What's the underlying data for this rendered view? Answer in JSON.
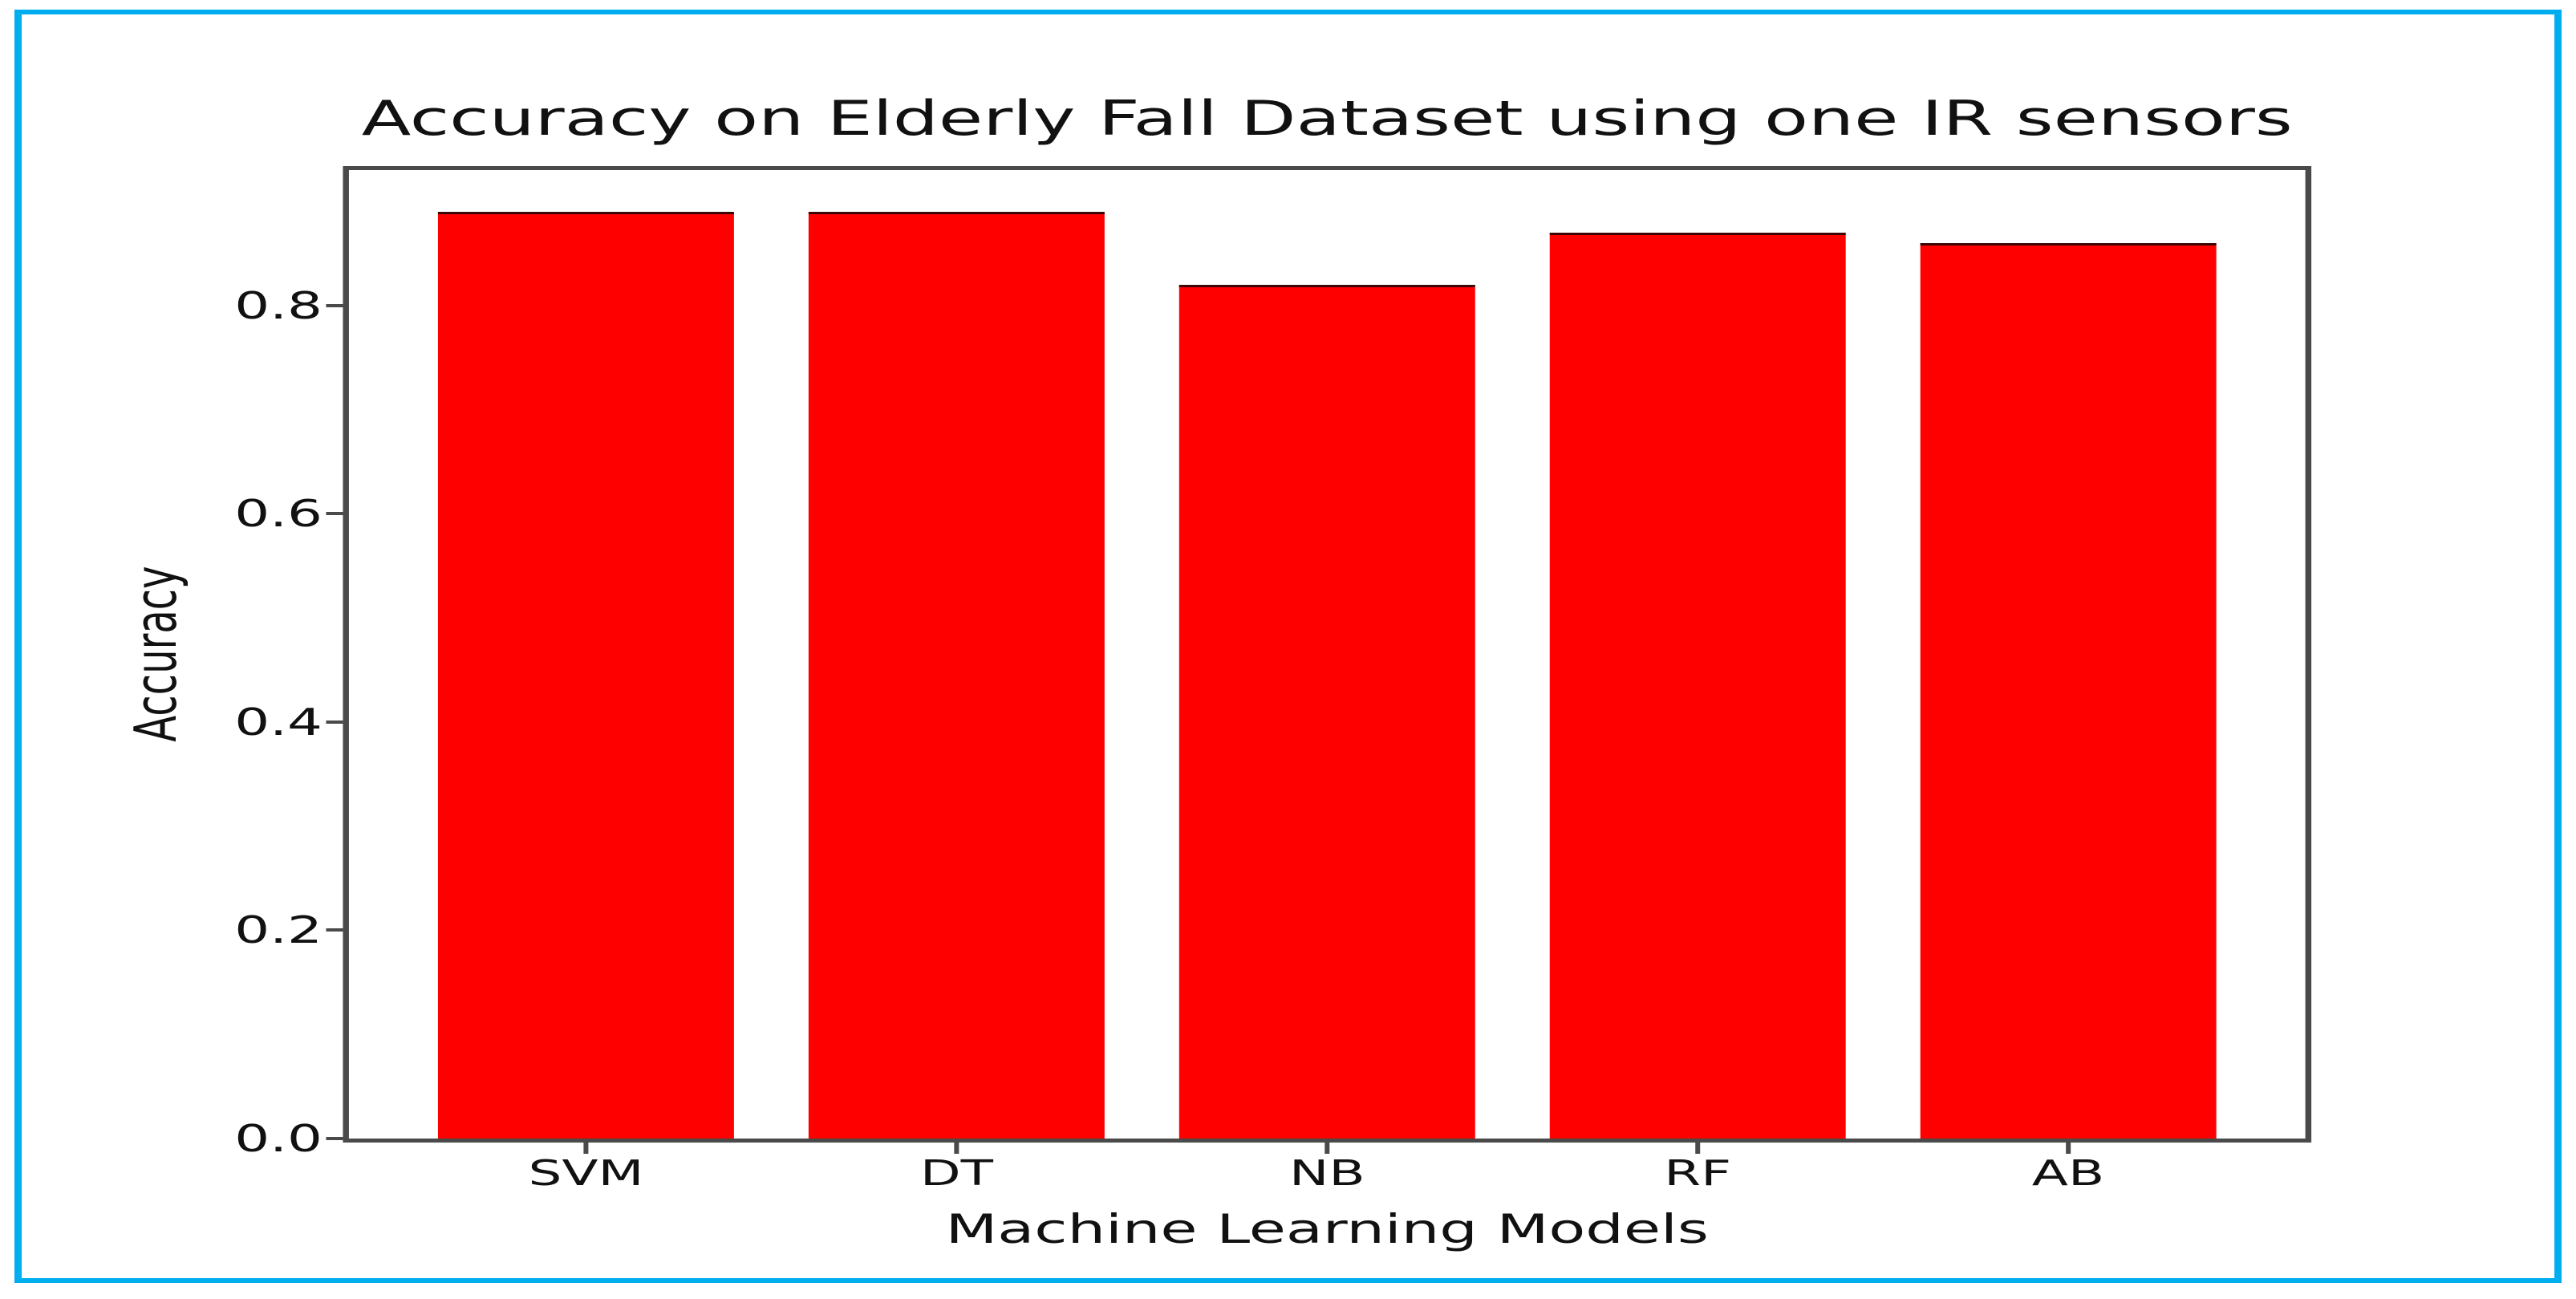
{
  "frame": {
    "background_color": "#ffffff",
    "border_color": "#00aeef",
    "spine_color": "#4a4a4a"
  },
  "chart_data": {
    "type": "bar",
    "title": "Accuracy on Elderly Fall Dataset using one IR sensors",
    "xlabel": "Machine Learning Models",
    "ylabel": "Accuracy",
    "categories": [
      "SVM",
      "DT",
      "NB",
      "RF",
      "AB"
    ],
    "values": [
      0.89,
      0.89,
      0.82,
      0.87,
      0.86
    ],
    "bar_color": "#ff0000",
    "bar_edge_color": "#3c0703",
    "ylim": [
      0,
      0.93
    ],
    "yticks": [
      0.0,
      0.2,
      0.4,
      0.6,
      0.8
    ],
    "ytick_labels": [
      "0.0",
      "0.2",
      "0.4",
      "0.6",
      "0.8"
    ],
    "bar_width_ratio": 0.8,
    "x_margin_ratio": 0.05,
    "grid": false,
    "legend": null
  }
}
